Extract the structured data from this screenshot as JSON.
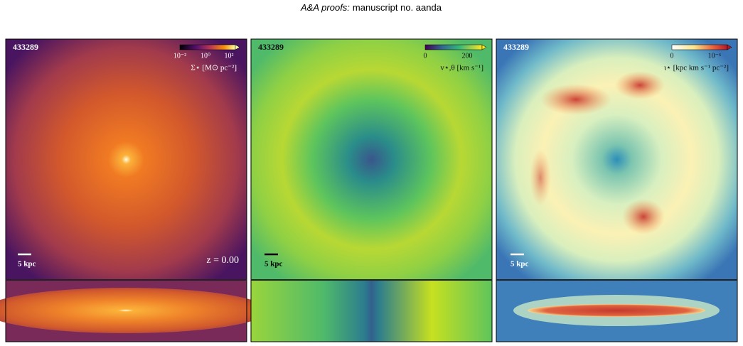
{
  "header": {
    "journal": "A&A proofs:",
    "text": "manuscript no. aanda"
  },
  "panels": [
    {
      "id": "433289",
      "colorbar": {
        "ticks": [
          "10⁻²",
          "10⁰",
          "10²"
        ],
        "label": "Σ⋆ [M⊙ pc⁻²]"
      },
      "scale_bar": "5 kpc",
      "redshift": "z = 0.00"
    },
    {
      "id": "433289",
      "colorbar": {
        "ticks": [
          "0",
          "200"
        ],
        "label": "v⋆,θ [km s⁻¹]"
      },
      "scale_bar": "5 kpc"
    },
    {
      "id": "433289",
      "colorbar": {
        "ticks": [
          "0",
          "10⁻⁶"
        ],
        "label": "ι⋆ [kpc km s⁻¹ pc⁻²]"
      },
      "scale_bar": "5 kpc"
    }
  ]
}
